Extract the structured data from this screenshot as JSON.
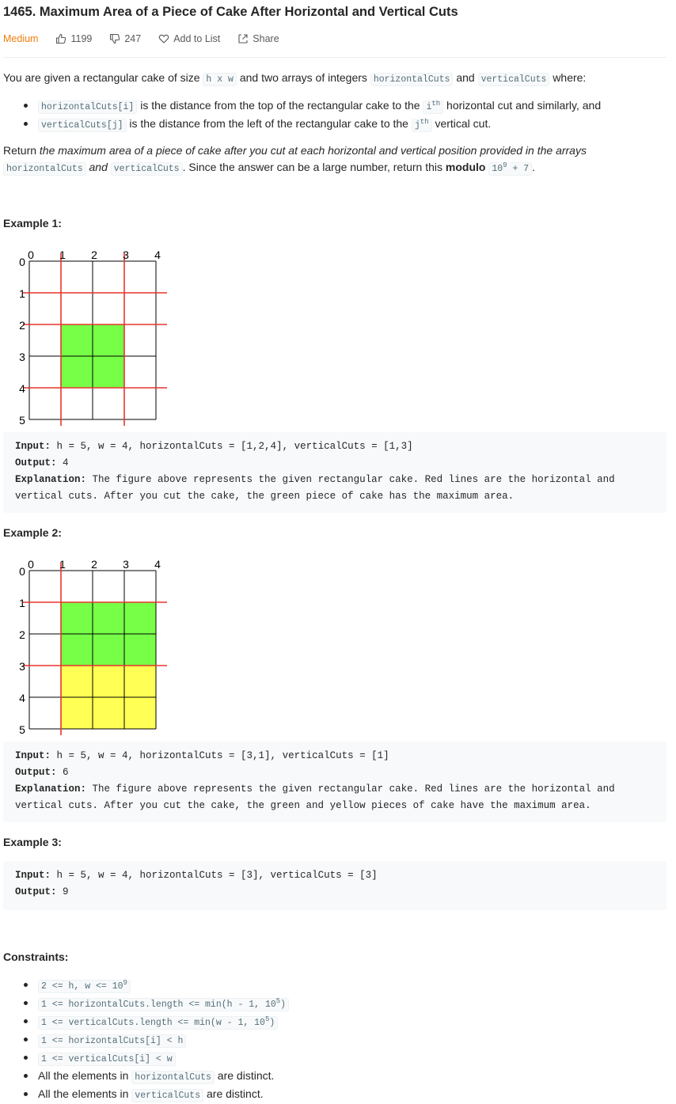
{
  "problem": {
    "title": "1465. Maximum Area of a Piece of Cake After Horizontal and Vertical Cuts",
    "difficulty": "Medium",
    "likes": "1199",
    "dislikes": "247",
    "add_to_list": "Add to List",
    "share": "Share"
  },
  "description": {
    "p1_a": "You are given a rectangular cake of size ",
    "p1_code_h": "h x w",
    "p1_b": " and two arrays of integers ",
    "p1_code_hc": "horizontalCuts",
    "p1_c": " and ",
    "p1_code_vc": "verticalCuts",
    "p1_d": " where:",
    "b1_code": "horizontalCuts[i]",
    "b1_a": " is the distance from the top of the rectangular cake to the ",
    "b1_sup_base": "i",
    "b1_sup": "th",
    "b1_b": " horizontal cut and similarly, and",
    "b2_code": "verticalCuts[j]",
    "b2_a": " is the distance from the left of the rectangular cake to the ",
    "b2_sup_base": "j",
    "b2_sup": "th",
    "b2_b": " vertical cut.",
    "p2_a": "Return ",
    "p2_em": "the maximum area of a piece of cake after you cut at each horizontal and vertical position provided in the arrays",
    "p2_code_hc": "horizontalCuts",
    "p2_and": " and ",
    "p2_code_vc": "verticalCuts",
    "p2_b": ". Since the answer can be a large number, return this ",
    "p2_bold": "modulo",
    "p2_code_mod_a": "10",
    "p2_code_mod_sup": "9",
    "p2_code_mod_b": " + 7",
    "p2_end": "."
  },
  "examples": [
    {
      "heading": "Example 1:",
      "input_label": "Input:",
      "input": " h = 5, w = 4, horizontalCuts = [1,2,4], verticalCuts = [1,3]",
      "output_label": "Output:",
      "output": " 4",
      "explanation_label": "Explanation:",
      "explanation": " The figure above represents the given rectangular cake. Red lines are the horizontal and vertical cuts. After you cut the cake, the green piece of cake has the maximum area."
    },
    {
      "heading": "Example 2:",
      "input_label": "Input:",
      "input": " h = 5, w = 4, horizontalCuts = [3,1], verticalCuts = [1]",
      "output_label": "Output:",
      "output": " 6",
      "explanation_label": "Explanation:",
      "explanation": " The figure above represents the given rectangular cake. Red lines are the horizontal and vertical cuts. After you cut the cake, the green and yellow pieces of cake have the maximum area."
    },
    {
      "heading": "Example 3:",
      "input_label": "Input:",
      "input": " h = 5, w = 4, horizontalCuts = [3], verticalCuts = [3]",
      "output_label": "Output:",
      "output": " 9"
    }
  ],
  "figures": [
    {
      "h": 5,
      "w": 4,
      "horizontalCuts": [
        1,
        2,
        4
      ],
      "verticalCuts": [
        1,
        3
      ],
      "x_ticks": [
        "0",
        "1",
        "2",
        "3",
        "4"
      ],
      "y_ticks": [
        "0",
        "1",
        "2",
        "3",
        "4",
        "5"
      ],
      "pieces": [
        {
          "rows": [
            2,
            4
          ],
          "cols": [
            1,
            3
          ],
          "color": "#77ff48"
        }
      ],
      "cut_color": "#e8342d"
    },
    {
      "h": 5,
      "w": 4,
      "horizontalCuts": [
        3,
        1
      ],
      "verticalCuts": [
        1
      ],
      "x_ticks": [
        "0",
        "1",
        "2",
        "3",
        "4"
      ],
      "y_ticks": [
        "0",
        "1",
        "2",
        "3",
        "4",
        "5"
      ],
      "pieces": [
        {
          "rows": [
            1,
            3
          ],
          "cols": [
            1,
            4
          ],
          "color": "#77ff48"
        },
        {
          "rows": [
            3,
            5
          ],
          "cols": [
            1,
            4
          ],
          "color": "#ffff55"
        }
      ],
      "cut_color": "#e8342d"
    }
  ],
  "constraints": {
    "heading": "Constraints:",
    "c1_a": "2 <= h, w <= 10",
    "c1_sup": "9",
    "c2_a": "1 <= horizontalCuts.length <= min(h - 1, 10",
    "c2_sup": "5",
    "c2_b": ")",
    "c3_a": "1 <= verticalCuts.length <= min(w - 1, 10",
    "c3_sup": "5",
    "c3_b": ")",
    "c4": "1 <= horizontalCuts[i] < h",
    "c5": "1 <= verticalCuts[i] < w",
    "c6_a": "All the elements in ",
    "c6_code": "horizontalCuts",
    "c6_b": " are distinct.",
    "c7_a": "All the elements in ",
    "c7_code": "verticalCuts",
    "c7_b": " are distinct."
  }
}
